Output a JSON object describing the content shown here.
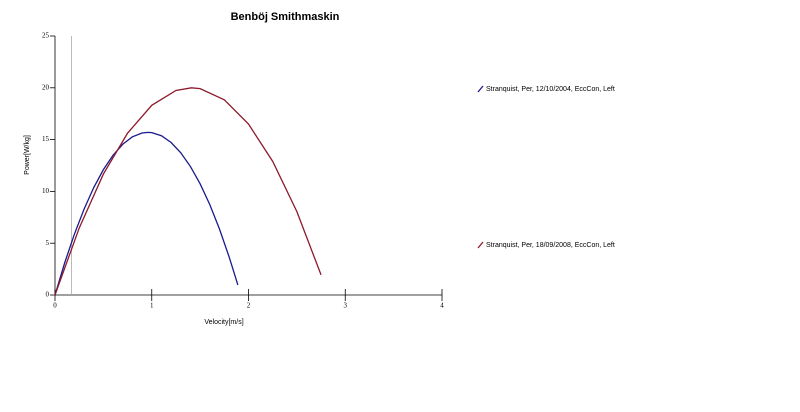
{
  "chart_data": {
    "type": "line",
    "title": "Benböj Smithmaskin",
    "x_label": "Velocity[m/s]",
    "y_label": "Power[W/kg]",
    "xlim": [
      0,
      4
    ],
    "xticks": [
      0,
      1,
      2,
      3,
      4
    ],
    "ylim": [
      0,
      25
    ],
    "yticks": [
      0,
      5,
      10,
      15,
      20,
      25
    ],
    "vline": 0.17,
    "series": [
      {
        "name": "Stranquist, Per, 12/10/2004, EccCon, Left",
        "color": "#1a1a8c",
        "x": [
          0,
          0.1,
          0.2,
          0.3,
          0.4,
          0.5,
          0.6,
          0.7,
          0.8,
          0.9,
          0.96,
          1.0,
          1.1,
          1.2,
          1.3,
          1.4,
          1.5,
          1.6,
          1.7,
          1.8,
          1.89
        ],
        "values": [
          0,
          3.1,
          5.86,
          8.28,
          10.36,
          12.1,
          13.49,
          14.55,
          15.27,
          15.64,
          15.7,
          15.67,
          15.37,
          14.72,
          13.73,
          12.4,
          10.73,
          8.72,
          6.37,
          3.67,
          0.97
        ]
      },
      {
        "name": "Stranquist, Per, 18/09/2008, EccCon, Left",
        "color": "#8c1a2a",
        "x": [
          0,
          0.25,
          0.5,
          0.75,
          1.0,
          1.25,
          1.41,
          1.5,
          1.75,
          2.0,
          2.25,
          2.5,
          2.75
        ],
        "values": [
          0,
          6.46,
          11.67,
          15.62,
          18.31,
          19.74,
          20.0,
          19.92,
          18.84,
          16.5,
          12.9,
          8.05,
          1.94
        ]
      }
    ]
  }
}
